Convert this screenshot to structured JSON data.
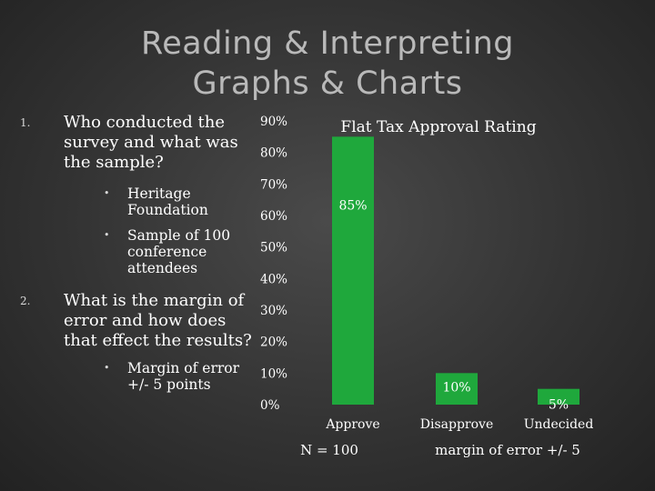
{
  "slide": {
    "title_line1": "Reading & Interpreting",
    "title_line2": "Graphs & Charts"
  },
  "questions": [
    {
      "number": "1.",
      "text": "Who conducted the survey and what was the sample?",
      "bullets": [
        "Heritage Foundation",
        "Sample of 100 conference attendees"
      ]
    },
    {
      "number": "2.",
      "text": "What is the margin of error and how does that effect the results?",
      "bullets": [
        "Margin of error +/- 5 points"
      ]
    }
  ],
  "chart_data": {
    "type": "bar",
    "title": "Flat Tax Approval Rating",
    "categories": [
      "Approve",
      "Disapprove",
      "Undecided"
    ],
    "values": [
      85,
      10,
      5
    ],
    "data_labels": [
      "85%",
      "10%",
      "5%"
    ],
    "y_ticks": [
      "0%",
      "10%",
      "20%",
      "30%",
      "40%",
      "50%",
      "60%",
      "70%",
      "80%",
      "90%"
    ],
    "ylim": [
      0,
      90
    ],
    "bar_color": "#1fa83c",
    "grid": false,
    "notes": [
      "N = 100",
      "margin of error +/- 5"
    ]
  }
}
